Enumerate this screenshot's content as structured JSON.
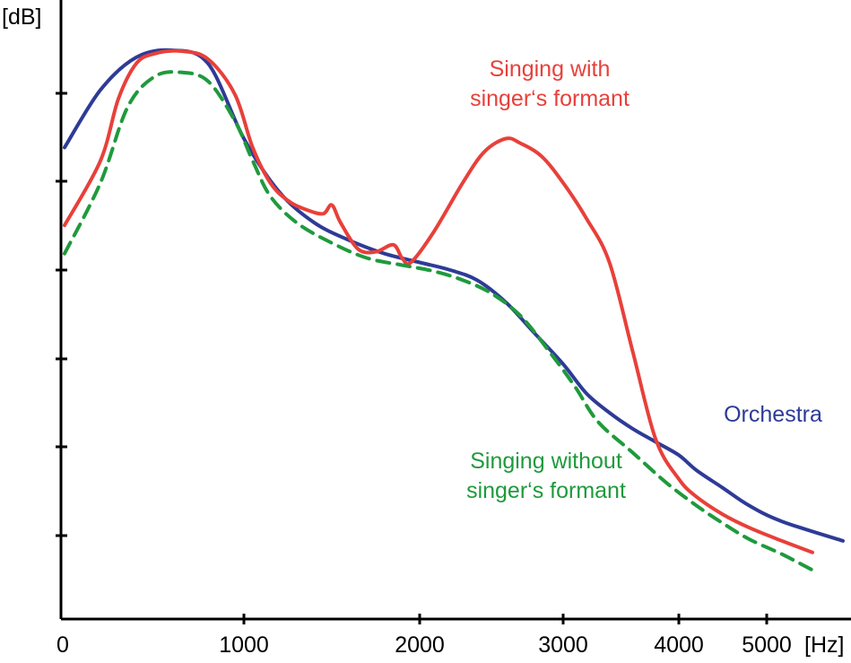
{
  "chart_data": {
    "type": "line",
    "xlabel": "[Hz]",
    "ylabel": "[dB]",
    "x_ticks": [
      0,
      1000,
      2000,
      3000,
      4000,
      5000
    ],
    "y_tick_count": 6,
    "xlim": [
      0,
      5500
    ],
    "ylim": [
      -70,
      0
    ],
    "x_scale": "compressed-above-3000",
    "series": [
      {
        "name": "Orchestra",
        "label_lines": [
          "Orchestra"
        ],
        "color": "#2e3b96",
        "dash": false,
        "points": [
          [
            0,
            -11.0
          ],
          [
            200,
            -4.5
          ],
          [
            400,
            -0.8
          ],
          [
            600,
            0.0
          ],
          [
            800,
            -1.5
          ],
          [
            1000,
            -10.0
          ],
          [
            1200,
            -16.0
          ],
          [
            1400,
            -19.5
          ],
          [
            1600,
            -21.5
          ],
          [
            1800,
            -23.0
          ],
          [
            2000,
            -24.0
          ],
          [
            2200,
            -24.8
          ],
          [
            2400,
            -26.0
          ],
          [
            2600,
            -28.5
          ],
          [
            2800,
            -32.0
          ],
          [
            3000,
            -35.5
          ],
          [
            3200,
            -38.8
          ],
          [
            3400,
            -41.0
          ],
          [
            3600,
            -42.8
          ],
          [
            3800,
            -44.3
          ],
          [
            4000,
            -45.8
          ],
          [
            4200,
            -47.5
          ],
          [
            4500,
            -49.5
          ],
          [
            4800,
            -51.5
          ],
          [
            5100,
            -53.3
          ],
          [
            5500,
            -55.5
          ]
        ]
      },
      {
        "name": "Singing with singer‘s formant",
        "label_lines": [
          "Singing with",
          "singer‘s formant"
        ],
        "color": "#e8403a",
        "dash": false,
        "points": [
          [
            0,
            -19.8
          ],
          [
            200,
            -12.5
          ],
          [
            300,
            -5.5
          ],
          [
            400,
            -1.5
          ],
          [
            500,
            -0.4
          ],
          [
            650,
            -0.1
          ],
          [
            800,
            -1.0
          ],
          [
            950,
            -5.0
          ],
          [
            1050,
            -11.0
          ],
          [
            1150,
            -15.0
          ],
          [
            1250,
            -17.0
          ],
          [
            1350,
            -18.0
          ],
          [
            1450,
            -18.5
          ],
          [
            1500,
            -17.5
          ],
          [
            1550,
            -19.5
          ],
          [
            1650,
            -22.5
          ],
          [
            1750,
            -22.8
          ],
          [
            1850,
            -22.0
          ],
          [
            1900,
            -23.5
          ],
          [
            1950,
            -24.0
          ],
          [
            2100,
            -20.5
          ],
          [
            2300,
            -15.0
          ],
          [
            2450,
            -11.5
          ],
          [
            2600,
            -10.0
          ],
          [
            2700,
            -10.5
          ],
          [
            2850,
            -12.0
          ],
          [
            3000,
            -15.0
          ],
          [
            3200,
            -19.0
          ],
          [
            3400,
            -24.0
          ],
          [
            3600,
            -34.0
          ],
          [
            3800,
            -44.0
          ],
          [
            4000,
            -48.5
          ],
          [
            4200,
            -50.5
          ],
          [
            4500,
            -52.5
          ],
          [
            4800,
            -54.0
          ],
          [
            5100,
            -55.5
          ],
          [
            5300,
            -56.8
          ]
        ]
      },
      {
        "name": "Singing without singer‘s formant",
        "label_lines": [
          "Singing without",
          "singer‘s formant"
        ],
        "color": "#1f9a3c",
        "dash": true,
        "points": [
          [
            0,
            -23.0
          ],
          [
            200,
            -15.0
          ],
          [
            350,
            -6.5
          ],
          [
            500,
            -3.0
          ],
          [
            650,
            -2.5
          ],
          [
            800,
            -3.5
          ],
          [
            950,
            -8.0
          ],
          [
            1050,
            -12.5
          ],
          [
            1150,
            -16.5
          ],
          [
            1300,
            -19.5
          ],
          [
            1500,
            -21.8
          ],
          [
            1700,
            -23.5
          ],
          [
            1900,
            -24.3
          ],
          [
            2100,
            -25.0
          ],
          [
            2300,
            -26.0
          ],
          [
            2500,
            -27.5
          ],
          [
            2700,
            -30.0
          ],
          [
            2900,
            -34.0
          ],
          [
            3100,
            -38.0
          ],
          [
            3300,
            -42.0
          ],
          [
            3600,
            -45.5
          ],
          [
            3900,
            -49.0
          ],
          [
            4200,
            -51.5
          ],
          [
            4500,
            -53.5
          ],
          [
            4800,
            -55.3
          ],
          [
            5100,
            -57.0
          ],
          [
            5300,
            -58.8
          ]
        ]
      }
    ]
  }
}
